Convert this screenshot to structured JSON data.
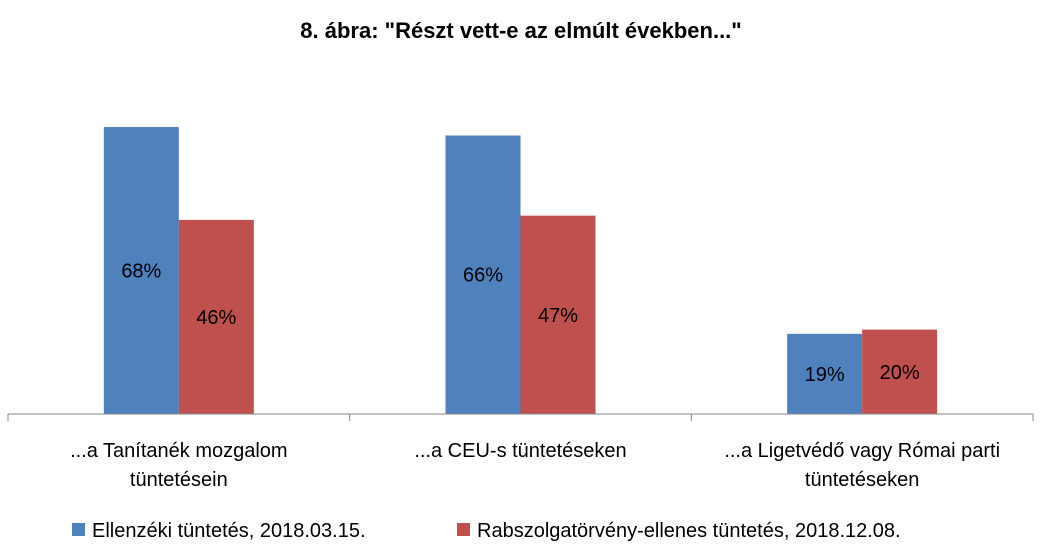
{
  "chart_data": {
    "type": "bar",
    "title": "8. ábra: \"Részt vett-e az elmúlt években...\"",
    "xlabel": "",
    "ylabel": "",
    "ylim": [
      0,
      100
    ],
    "grid": false,
    "legend_position": "bottom",
    "categories": [
      [
        "...a Tanítanék mozgalom",
        "tüntetésein"
      ],
      [
        "...a CEU-s tüntetéseken"
      ],
      [
        "...a Ligetvédő vagy Római parti",
        "tüntetéseken"
      ]
    ],
    "series": [
      {
        "name": "Ellenzéki tüntetés, 2018.03.15.",
        "color": "#4f81bd",
        "values": [
          68,
          66,
          19
        ],
        "labels": [
          "68%",
          "66%",
          "19%"
        ]
      },
      {
        "name": "Rabszolgatörvény-ellenes tüntetés, 2018.12.08.",
        "color": "#c0504d",
        "values": [
          46,
          47,
          20
        ],
        "labels": [
          "46%",
          "47%",
          "20%"
        ]
      }
    ]
  }
}
